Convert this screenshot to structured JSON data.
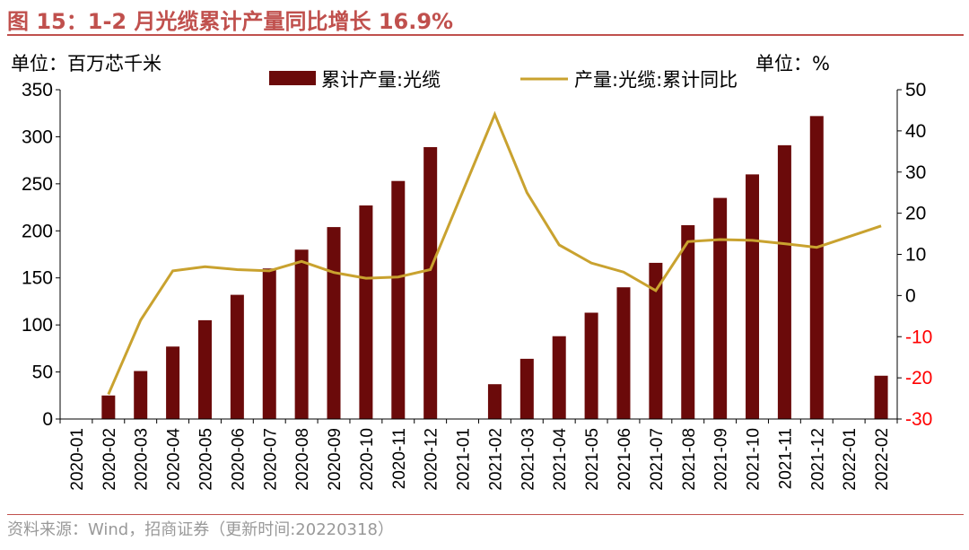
{
  "title": "图 15：1-2 月光缆累计产量同比增长 16.9%",
  "footer": "资料来源：Wind，招商证券（更新时间:20220318）",
  "colors": {
    "title": "#c0504d",
    "bar": "#6b0a0a",
    "line": "#c9a22f",
    "right_axis": "#ff0000"
  },
  "chart_data": {
    "type": "bar",
    "left_unit": "单位：百万芯千米",
    "right_unit": "单位：%",
    "categories": [
      "2020-01",
      "2020-02",
      "2020-03",
      "2020-04",
      "2020-05",
      "2020-06",
      "2020-07",
      "2020-08",
      "2020-09",
      "2020-10",
      "2020-11",
      "2020-12",
      "2021-01",
      "2021-02",
      "2021-03",
      "2021-04",
      "2021-05",
      "2021-06",
      "2021-07",
      "2021-08",
      "2021-09",
      "2021-10",
      "2021-11",
      "2021-12",
      "2022-01",
      "2022-02"
    ],
    "series": [
      {
        "name": "累计产量:光缆",
        "type": "bar",
        "axis": "left",
        "values": [
          null,
          25,
          51,
          77,
          105,
          132,
          160,
          180,
          204,
          227,
          253,
          289,
          null,
          37,
          64,
          88,
          113,
          140,
          166,
          206,
          235,
          260,
          291,
          322,
          null,
          46
        ]
      },
      {
        "name": "产量:光缆:累计同比",
        "type": "line",
        "axis": "right",
        "values": [
          null,
          -24,
          -6,
          6,
          7,
          6.3,
          6,
          8.3,
          5.6,
          4.2,
          4.5,
          6.3,
          null,
          44,
          25,
          12.3,
          7.9,
          5.7,
          1.2,
          13.1,
          13.6,
          13.4,
          12.6,
          11.7,
          null,
          16.9
        ]
      }
    ],
    "yleft": {
      "min": 0,
      "max": 350,
      "ticks": [
        0,
        50,
        100,
        150,
        200,
        250,
        300,
        350
      ]
    },
    "yright": {
      "min": -30,
      "max": 50,
      "ticks": [
        -30,
        -20,
        -10,
        0,
        10,
        20,
        30,
        40,
        50
      ]
    },
    "legend": "top-center"
  }
}
